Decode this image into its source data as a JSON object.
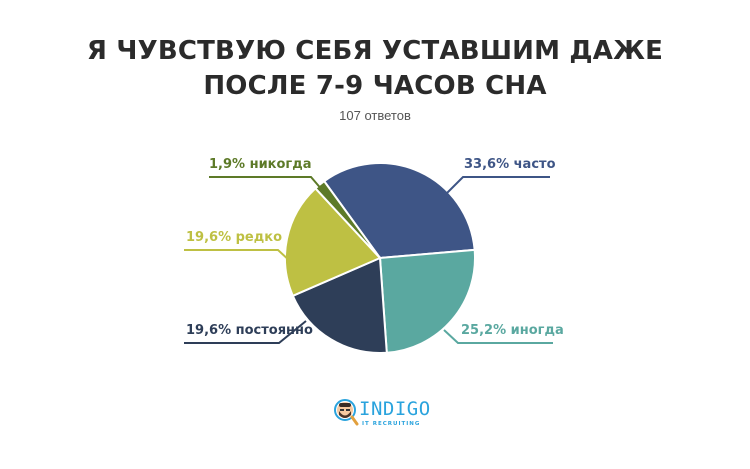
{
  "title_line1": "Я ЧУВСТВУЮ СЕБЯ УСТАВШИМ ДАЖЕ",
  "title_line2": "ПОСЛЕ 7-9 ЧАСОВ СНА",
  "subtitle": "107 ответов",
  "labels": {
    "never": "1,9% никогда",
    "often": "33,6% часто",
    "rarely": "19,6% редко",
    "constantly": "19,6% постоянно",
    "sometimes": "25,2% иногда"
  },
  "logo": {
    "name": "INDIGO",
    "tagline": "IT RECRUITING",
    "icon": "magnifier-avatar-icon"
  },
  "colors": {
    "often": "#3e5586",
    "sometimes": "#5aa8a0",
    "constantly": "#2e3e58",
    "rarely": "#bec043",
    "never": "#5d7a28",
    "logo": "#2aa3dd"
  },
  "chart_data": {
    "type": "pie",
    "title": "Я чувствую себя уставшим даже после 7-9 часов сна",
    "subtitle": "107 ответов",
    "categories": [
      "часто",
      "иногда",
      "постоянно",
      "редко",
      "никогда"
    ],
    "values": [
      33.6,
      25.2,
      19.6,
      19.6,
      1.9
    ],
    "unit": "%",
    "colors": [
      "#3e5586",
      "#5aa8a0",
      "#2e3e58",
      "#bec043",
      "#5d7a28"
    ],
    "start_angle_deg": -36,
    "direction": "clockwise",
    "legend": "callout labels"
  }
}
